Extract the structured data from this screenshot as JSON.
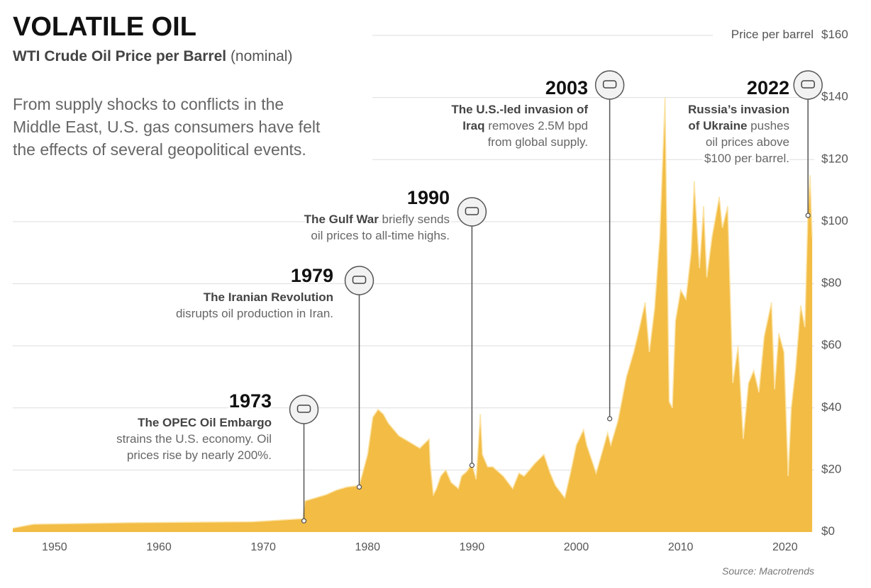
{
  "chart_data": {
    "type": "area",
    "title": "VOLATILE OIL",
    "subtitle": "WTI Crude Oil Price per Barrel",
    "subtitle_note": "(nominal)",
    "description": [
      "From supply shocks to conflicts in the",
      "Middle East, U.S. gas consumers have felt",
      "the effects of several geopolitical events."
    ],
    "y_label": "Price per barrel",
    "source": "Source: Macrotrends",
    "color": "#f2bc45",
    "grid": true,
    "xlim": [
      1946,
      2022.8
    ],
    "ylim": [
      0,
      160
    ],
    "xticks": [
      1950,
      1960,
      1970,
      1980,
      1990,
      2000,
      2010,
      2020
    ],
    "yticks": [
      {
        "value": 0,
        "label": "$0"
      },
      {
        "value": 20,
        "label": "$20"
      },
      {
        "value": 40,
        "label": "$40"
      },
      {
        "value": 60,
        "label": "$60"
      },
      {
        "value": 80,
        "label": "$80"
      },
      {
        "value": 100,
        "label": "$100"
      },
      {
        "value": 120,
        "label": "$120"
      },
      {
        "value": 140,
        "label": "$140"
      },
      {
        "value": 160,
        "label": "$160"
      }
    ],
    "x": [
      1946,
      1947,
      1948,
      1957,
      1969,
      1973.8,
      1974,
      1975,
      1976,
      1977,
      1978,
      1979.2,
      1980,
      1980.5,
      1981,
      1981.5,
      1982,
      1983,
      1984,
      1985,
      1985.9,
      1986,
      1986.3,
      1986.6,
      1987,
      1987.5,
      1988,
      1988.7,
      1989,
      1989.5,
      1990,
      1990.4,
      1990.8,
      1991,
      1991.5,
      1992,
      1993,
      1993.9,
      1994.5,
      1995,
      1996,
      1996.9,
      1997.5,
      1998,
      1998.9,
      1999.5,
      2000,
      2000.7,
      2001,
      2001.9,
      2002.5,
      2003,
      2003.3,
      2004,
      2004.8,
      2005.5,
      2006,
      2006.6,
      2007,
      2007.5,
      2008,
      2008.5,
      2008.9,
      2009.2,
      2009.5,
      2010,
      2010.5,
      2011,
      2011.3,
      2011.8,
      2012.2,
      2012.5,
      2013,
      2013.7,
      2014,
      2014.5,
      2015,
      2015.5,
      2016,
      2016.5,
      2017,
      2017.5,
      2018,
      2018.7,
      2019,
      2019.4,
      2019.9,
      2020.3,
      2020.6,
      2021,
      2021.5,
      2021.9,
      2022.2,
      2022.4,
      2022.6
    ],
    "values": [
      1.2,
      1.9,
      2.5,
      3.0,
      3.3,
      4.3,
      10,
      11,
      12,
      13.5,
      14.5,
      15,
      25,
      37,
      39.5,
      38,
      35,
      31,
      29,
      27,
      30,
      22,
      12,
      14,
      18,
      20,
      16,
      14,
      18,
      19.5,
      22,
      17,
      38,
      25,
      21,
      21,
      18,
      14,
      19,
      18,
      22,
      25,
      19,
      15,
      11,
      20,
      28,
      33,
      28,
      19,
      26,
      32,
      28,
      36,
      50,
      58,
      65,
      74,
      58,
      72,
      95,
      140,
      42,
      40,
      68,
      78,
      75,
      90,
      113,
      85,
      105,
      82,
      95,
      108,
      98,
      105,
      48,
      60,
      30,
      48,
      52,
      45,
      63,
      74,
      46,
      64,
      58,
      18,
      40,
      52,
      73,
      66,
      104,
      115,
      95
    ],
    "annotations": [
      {
        "year": "1973",
        "x": 1973.9,
        "y": 3.6,
        "lines": [
          [
            {
              "t": "The OPEC Oil Embargo",
              "b": true
            }
          ],
          [
            {
              "t": "strains the U.S. economy. Oil",
              "b": false
            }
          ],
          [
            {
              "t": "prices rise by nearly 200%.",
              "b": false
            }
          ]
        ]
      },
      {
        "year": "1979",
        "x": 1979.2,
        "y": 14.5,
        "lines": [
          [
            {
              "t": "The Iranian Revolution",
              "b": true
            }
          ],
          [
            {
              "t": "disrupts oil production in Iran.",
              "b": false
            }
          ]
        ]
      },
      {
        "year": "1990",
        "x": 1990.0,
        "y": 21.5,
        "lines": [
          [
            {
              "t": "The Gulf War",
              "b": true
            },
            {
              "t": " briefly sends",
              "b": false
            }
          ],
          [
            {
              "t": "oil prices to all-time highs.",
              "b": false
            }
          ]
        ]
      },
      {
        "year": "2003",
        "x": 2003.2,
        "y": 36.5,
        "lines": [
          [
            {
              "t": "The U.S.-led invasion of",
              "b": true
            }
          ],
          [
            {
              "t": "Iraq",
              "b": true
            },
            {
              "t": " removes 2.5M bpd",
              "b": false
            }
          ],
          [
            {
              "t": "from global supply.",
              "b": false
            }
          ]
        ]
      },
      {
        "year": "2022",
        "x": 2022.2,
        "y": 102,
        "lines": [
          [
            {
              "t": "Russia’s invasion",
              "b": true
            }
          ],
          [
            {
              "t": "of Ukraine",
              "b": true
            },
            {
              "t": " pushes",
              "b": false
            }
          ],
          [
            {
              "t": "oil prices above",
              "b": false
            }
          ],
          [
            {
              "t": "$100 per barrel.",
              "b": false
            }
          ]
        ]
      }
    ]
  }
}
